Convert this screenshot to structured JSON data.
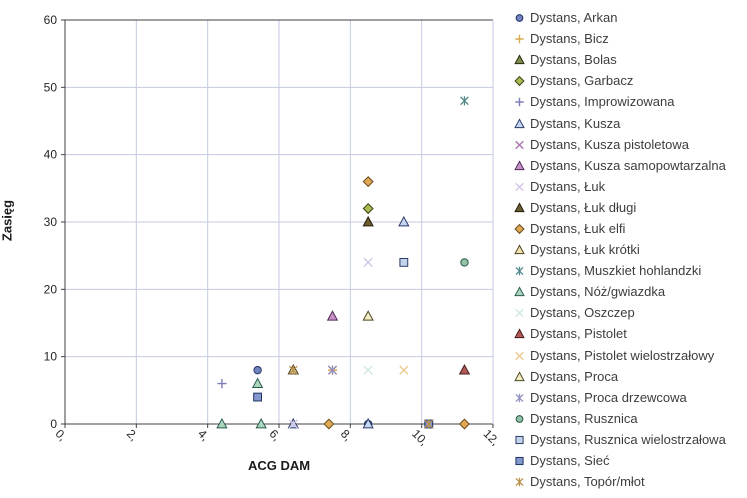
{
  "chart_data": {
    "type": "scatter",
    "xlabel": "ACG DAM",
    "ylabel": "Zasięg",
    "xlim": [
      0,
      12
    ],
    "ylim": [
      0,
      60
    ],
    "grid": true,
    "legend_position": "right",
    "x_ticks": [
      "0,",
      "2,",
      "4,",
      "6,",
      "8,",
      "10,",
      "12,"
    ],
    "x_tick_values": [
      0,
      2,
      4,
      6,
      8,
      10,
      12
    ],
    "y_ticks": [
      "0",
      "10",
      "20",
      "30",
      "40",
      "50",
      "60"
    ],
    "y_tick_values": [
      0,
      10,
      20,
      30,
      40,
      50,
      60
    ],
    "series": [
      {
        "name": "Dystans, Arkan",
        "marker": "circle",
        "fill": "#7383bf",
        "stroke": "#1f3263",
        "points": [
          [
            5.4,
            8
          ],
          [
            8.5,
            0
          ]
        ]
      },
      {
        "name": "Dystans, Bicz",
        "marker": "plus",
        "fill": "#d9a94f",
        "stroke": "#d9a94f",
        "points": [
          [
            7.5,
            8
          ]
        ]
      },
      {
        "name": "Dystans, Bolas",
        "marker": "triangle",
        "fill": "#7c8c4d",
        "stroke": "#26290f",
        "points": [
          [
            6.4,
            8
          ]
        ]
      },
      {
        "name": "Dystans, Garbacz",
        "marker": "diamond",
        "fill": "#aab952",
        "stroke": "#3c4214",
        "points": [
          [
            8.5,
            32
          ]
        ]
      },
      {
        "name": "Dystans, Improwizowana",
        "marker": "plus",
        "fill": "#7d7dbb",
        "stroke": "#7d7dbb",
        "points": [
          [
            4.4,
            6
          ]
        ]
      },
      {
        "name": "Dystans, Kusza",
        "marker": "triangle",
        "fill": "#c5d6f0",
        "stroke": "#2c3a69",
        "points": [
          [
            6.4,
            0
          ],
          [
            8.5,
            0
          ],
          [
            9.5,
            30
          ]
        ]
      },
      {
        "name": "Dystans, Kusza pistoletowa",
        "marker": "x",
        "fill": "#a875ad",
        "stroke": "#a875ad",
        "points": [
          [
            7.5,
            8
          ]
        ]
      },
      {
        "name": "Dystans, Kusza samopowtarzalna",
        "marker": "triangle",
        "fill": "#c791c4",
        "stroke": "#50285a",
        "points": [
          [
            7.5,
            16
          ]
        ]
      },
      {
        "name": "Dystans, Łuk",
        "marker": "x",
        "fill": "#d3c6e8",
        "stroke": "#d3c6e8",
        "points": [
          [
            6.4,
            0
          ],
          [
            8.5,
            24
          ]
        ]
      },
      {
        "name": "Dystans, Łuk długi",
        "marker": "triangle",
        "fill": "#6a5c2e",
        "stroke": "#211c09",
        "points": [
          [
            8.5,
            30
          ]
        ]
      },
      {
        "name": "Dystans, Łuk elfi",
        "marker": "diamond",
        "fill": "#dfa954",
        "stroke": "#66481a",
        "points": [
          [
            7.4,
            0
          ],
          [
            8.5,
            36
          ],
          [
            11.2,
            0
          ]
        ]
      },
      {
        "name": "Dystans, Łuk krótki",
        "marker": "triangle",
        "fill": "#efe3b4",
        "stroke": "#4b3f1e",
        "points": [
          [
            6.4,
            8
          ]
        ]
      },
      {
        "name": "Dystans, Muszkiet hohlandzki",
        "marker": "asterisk",
        "fill": "#53898c",
        "stroke": "#53898c",
        "points": [
          [
            11.2,
            48
          ]
        ]
      },
      {
        "name": "Dystans, Nóż/gwiazdka",
        "marker": "triangle",
        "fill": "#abd5bd",
        "stroke": "#2b5c4d",
        "points": [
          [
            4.4,
            0
          ],
          [
            5.5,
            0
          ],
          [
            5.4,
            6
          ]
        ]
      },
      {
        "name": "Dystans, Oszczep",
        "marker": "x",
        "fill": "#cfe9da",
        "stroke": "#cfe9da",
        "points": [
          [
            8.5,
            8
          ]
        ]
      },
      {
        "name": "Dystans, Pistolet",
        "marker": "triangle",
        "fill": "#b25a57",
        "stroke": "#43191c",
        "points": [
          [
            11.2,
            8
          ]
        ]
      },
      {
        "name": "Dystans, Pistolet wielostrzałowy",
        "marker": "x",
        "fill": "#ecca92",
        "stroke": "#ecca92",
        "points": [
          [
            9.5,
            8
          ]
        ]
      },
      {
        "name": "Dystans, Proca",
        "marker": "triangle",
        "fill": "#f2edc4",
        "stroke": "#4c471f",
        "points": [
          [
            8.5,
            16
          ]
        ]
      },
      {
        "name": "Dystans, Proca drzewcowa",
        "marker": "asterisk",
        "fill": "#9192bd",
        "stroke": "#9192bd",
        "points": [
          [
            7.5,
            8
          ]
        ]
      },
      {
        "name": "Dystans, Rusznica",
        "marker": "circle",
        "fill": "#92c3a8",
        "stroke": "#265546",
        "points": [
          [
            11.2,
            24
          ]
        ]
      },
      {
        "name": "Dystans, Rusznica wielostrzałowa",
        "marker": "square",
        "fill": "#c3d3ea",
        "stroke": "#2c3a69",
        "points": [
          [
            9.5,
            24
          ]
        ]
      },
      {
        "name": "Dystans, Sieć",
        "marker": "square",
        "fill": "#8398cc",
        "stroke": "#1f3263",
        "points": [
          [
            5.4,
            4
          ],
          [
            10.2,
            0
          ]
        ]
      },
      {
        "name": "Dystans, Topór/młot",
        "marker": "asterisk",
        "fill": "#b8924a",
        "stroke": "#b8924a",
        "points": [
          [
            6.4,
            8
          ],
          [
            10.2,
            0
          ]
        ]
      }
    ]
  },
  "colors": {
    "grid": "#c5cbe3",
    "axis_dark": "#404040",
    "axis_light": "#c5cbe3",
    "tick_text": "#262626",
    "legend_text": "#3d3d3d",
    "background": "#ffffff"
  }
}
